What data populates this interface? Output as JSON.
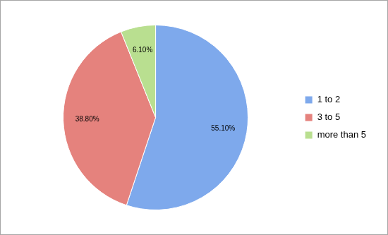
{
  "chart_data": {
    "type": "pie",
    "categories": [
      "1 to 2",
      "3 to 5",
      "more than 5"
    ],
    "values": [
      55.1,
      38.8,
      6.1
    ],
    "value_labels": [
      "55.10%",
      "38.80%",
      "6.10%"
    ],
    "colors": [
      "#7ea9ec",
      "#e5827d",
      "#b9df90"
    ],
    "data_labels": true,
    "legend": "right"
  }
}
